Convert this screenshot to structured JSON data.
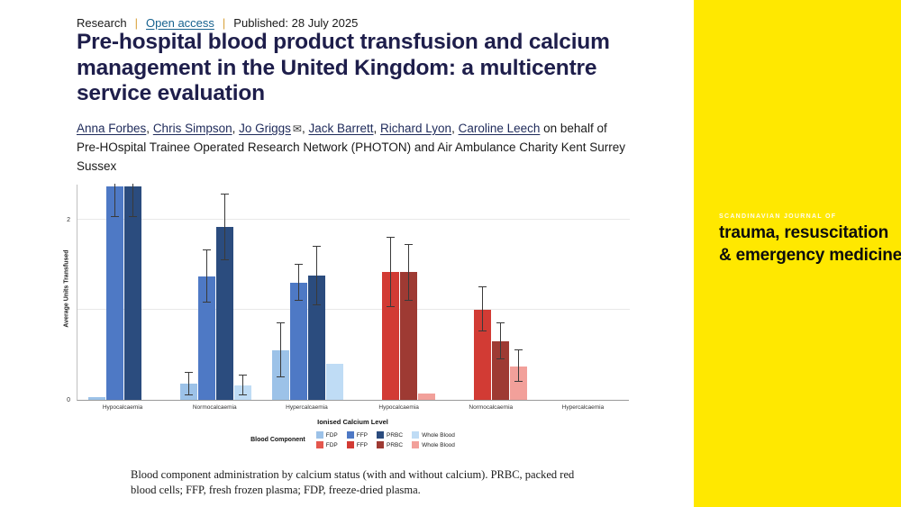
{
  "header": {
    "kicker": {
      "research": "Research",
      "open_access": "Open access",
      "published": "Published: 28 July 2025",
      "sep": "|"
    },
    "title": "Pre-hospital blood product transfusion and calcium management in the United Kingdom: a multicentre service evaluation",
    "authors": [
      "Anna Forbes",
      "Chris Simpson",
      "Jo Griggs",
      "Jack Barrett",
      "Richard Lyon",
      "Caroline Leech"
    ],
    "comma": ", ",
    "email_icon": "✉",
    "on_behalf": " on behalf of Pre-HOspital Trainee Operated Research Network (PHOTON) and Air Ambulance Charity Kent Surrey Sussex"
  },
  "journal": {
    "kicker": "SCANDINAVIAN JOURNAL OF",
    "name_line1": "trauma, resuscitation",
    "name_line2": "& emergency medicine",
    "bg": "#ffe800"
  },
  "figure": {
    "caption": "Blood component administration by calcium status (with and without calcium). PRBC, packed red blood cells; FFP, fresh frozen plasma; FDP, freeze-dried plasma."
  },
  "chart_data": {
    "type": "bar",
    "title": "",
    "xlabel": "Ionised Calcium Level",
    "ylabel": "Average Units Transfused",
    "legend_title": "Blood Component",
    "ylim": [
      0,
      2.4
    ],
    "yticks": [
      0,
      2
    ],
    "gridlines": [
      1,
      2
    ],
    "legend_position": "bottom",
    "components": [
      "FDP",
      "FFP",
      "PRBC",
      "Whole Blood"
    ],
    "palettes": {
      "blue": [
        "#9CC2E8",
        "#4E79C5",
        "#2B4C7E",
        "#BFDCF5"
      ],
      "red": [
        "#E4574D",
        "#D23B34",
        "#9E3A33",
        "#F2A09A"
      ]
    },
    "groups": [
      {
        "category": "Hypocalcaemia",
        "palette": "blue",
        "values": [
          0.03,
          2.37,
          2.37,
          0
        ],
        "errors": [
          null,
          [
            2.03,
            2.7
          ],
          [
            2.03,
            2.7
          ],
          null
        ]
      },
      {
        "category": "Normocalcaemia",
        "palette": "blue",
        "values": [
          0.18,
          1.37,
          1.92,
          0.16
        ],
        "errors": [
          [
            0.05,
            0.3
          ],
          [
            1.08,
            1.66
          ],
          [
            1.55,
            2.28
          ],
          [
            0.05,
            0.27
          ]
        ]
      },
      {
        "category": "Hypercalcaemia",
        "palette": "blue",
        "values": [
          0.55,
          1.3,
          1.38,
          0.4
        ],
        "errors": [
          [
            0.25,
            0.85
          ],
          [
            1.1,
            1.5
          ],
          [
            1.05,
            1.7
          ],
          null
        ]
      },
      {
        "category": "Hypocalcaemia",
        "palette": "red",
        "values": [
          0,
          1.42,
          1.42,
          0.07
        ],
        "errors": [
          null,
          [
            1.03,
            1.8
          ],
          [
            1.1,
            1.72
          ],
          null
        ]
      },
      {
        "category": "Normocalcaemia",
        "palette": "red",
        "values": [
          0,
          1.0,
          0.65,
          0.37
        ],
        "errors": [
          null,
          [
            0.76,
            1.25
          ],
          [
            0.45,
            0.85
          ],
          [
            0.2,
            0.55
          ]
        ]
      },
      {
        "category": "Hypercalcaemia",
        "palette": "red",
        "values": [
          0,
          0,
          0,
          0
        ],
        "errors": [
          null,
          null,
          null,
          null
        ]
      }
    ]
  }
}
